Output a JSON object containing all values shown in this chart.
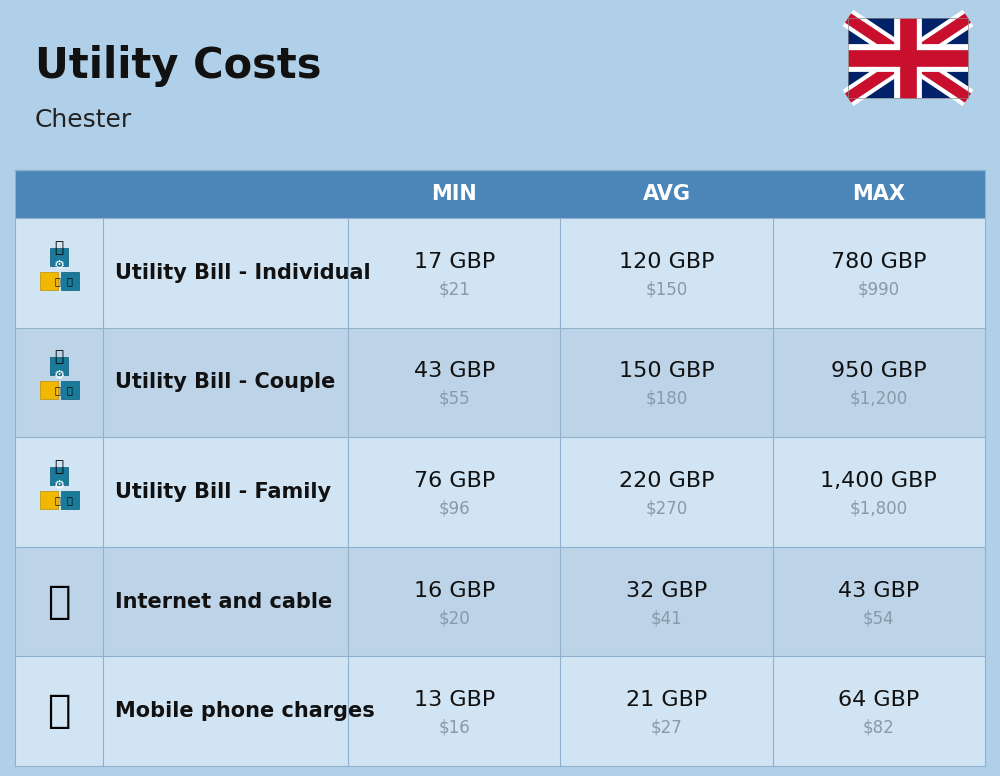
{
  "title": "Utility Costs",
  "subtitle": "Chester",
  "bg_color": "#afd0e8",
  "header_bg": "#4a86b8",
  "header_text_color": "#ffffff",
  "row_bg_odd": "#d0e4f4",
  "row_bg_even": "#bdd4e8",
  "divider_color": "#90b0cc",
  "col_headers": [
    "MIN",
    "AVG",
    "MAX"
  ],
  "rows": [
    {
      "label": "Utility Bill - Individual",
      "min_gbp": "17 GBP",
      "min_usd": "$21",
      "avg_gbp": "120 GBP",
      "avg_usd": "$150",
      "max_gbp": "780 GBP",
      "max_usd": "$990"
    },
    {
      "label": "Utility Bill - Couple",
      "min_gbp": "43 GBP",
      "min_usd": "$55",
      "avg_gbp": "150 GBP",
      "avg_usd": "$180",
      "max_gbp": "950 GBP",
      "max_usd": "$1,200"
    },
    {
      "label": "Utility Bill - Family",
      "min_gbp": "76 GBP",
      "min_usd": "$96",
      "avg_gbp": "220 GBP",
      "avg_usd": "$270",
      "max_gbp": "1,400 GBP",
      "max_usd": "$1,800"
    },
    {
      "label": "Internet and cable",
      "min_gbp": "16 GBP",
      "min_usd": "$20",
      "avg_gbp": "32 GBP",
      "avg_usd": "$41",
      "max_gbp": "43 GBP",
      "max_usd": "$54"
    },
    {
      "label": "Mobile phone charges",
      "min_gbp": "13 GBP",
      "min_usd": "$16",
      "avg_gbp": "21 GBP",
      "avg_usd": "$27",
      "max_gbp": "64 GBP",
      "max_usd": "$82"
    }
  ],
  "title_fontsize": 30,
  "subtitle_fontsize": 18,
  "header_fontsize": 15,
  "label_fontsize": 15,
  "value_fontsize": 16,
  "usd_fontsize": 12,
  "flag_color_blue": "#012169",
  "flag_color_red": "#C8102E",
  "flag_color_white": "#FFFFFF"
}
